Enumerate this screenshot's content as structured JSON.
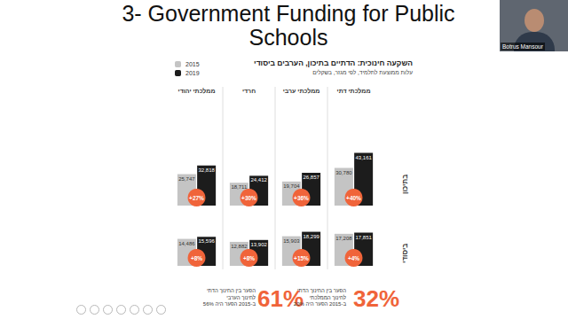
{
  "slide": {
    "title": "3- Government Funding for Public Schools",
    "speaker": "Botrus Mansour"
  },
  "chart_data": [
    {
      "type": "bar",
      "title": "השקעה חינוכית: הדתיים בתיכון, הערבים ביסודי",
      "subtitle": "עלות ממוצעת לתלמיד, לפי מגזר, בשקלים",
      "row_label": "בתיכון",
      "categories": [
        "ממלכתי יהודי",
        "חרדי",
        "ממלכתי ערבי",
        "ממלכתי דתי"
      ],
      "series": [
        {
          "name": "2015",
          "color": "#c4c4c4",
          "values": [
            25747,
            18711,
            19704,
            30780
          ],
          "value_labels": [
            "25,747",
            "18,711",
            "19,704",
            "30,780"
          ]
        },
        {
          "name": "2019",
          "color": "#1c1c1c",
          "values": [
            32818,
            24412,
            26857,
            43161
          ],
          "value_labels": [
            "32,818",
            "24,412",
            "26,857",
            "43,161"
          ]
        }
      ],
      "annotations": [
        "+27%",
        "+30%",
        "+36%",
        "+40%"
      ],
      "ylim": [
        0,
        45000
      ],
      "data_labels": true,
      "tick_labels": "x",
      "grid": false,
      "legend": "top-left"
    },
    {
      "type": "bar",
      "row_label": "ביסודי",
      "categories": [
        null,
        null,
        null,
        null
      ],
      "series": [
        {
          "name": "2015",
          "color": "#c4c4c4",
          "values": [
            14486,
            12882,
            15903,
            17208
          ],
          "value_labels": [
            "14,486",
            "12,882",
            "15,903",
            "17,208"
          ]
        },
        {
          "name": "2019",
          "color": "#1c1c1c",
          "values": [
            15596,
            13902,
            18299,
            17851
          ],
          "value_labels": [
            "15,596",
            "13,902",
            "18,299",
            "17,851"
          ]
        }
      ],
      "annotations": [
        "+8%",
        "+8%",
        "+15%",
        "+4%"
      ],
      "ylim": [
        0,
        20000
      ],
      "data_labels": true,
      "tick_labels": false,
      "grid": false
    }
  ],
  "footnotes": [
    {
      "figure": "61%",
      "text": [
        "הפער בין החינוך הדתי",
        "לחינוך הערבי",
        "ב-2015 הפער היה 56%"
      ]
    },
    {
      "figure": "32%",
      "text": [
        "הפער בין החינוך הדתי",
        "לחינוך הממלכתי",
        "ב-2015 הפער היה 20%"
      ]
    }
  ]
}
